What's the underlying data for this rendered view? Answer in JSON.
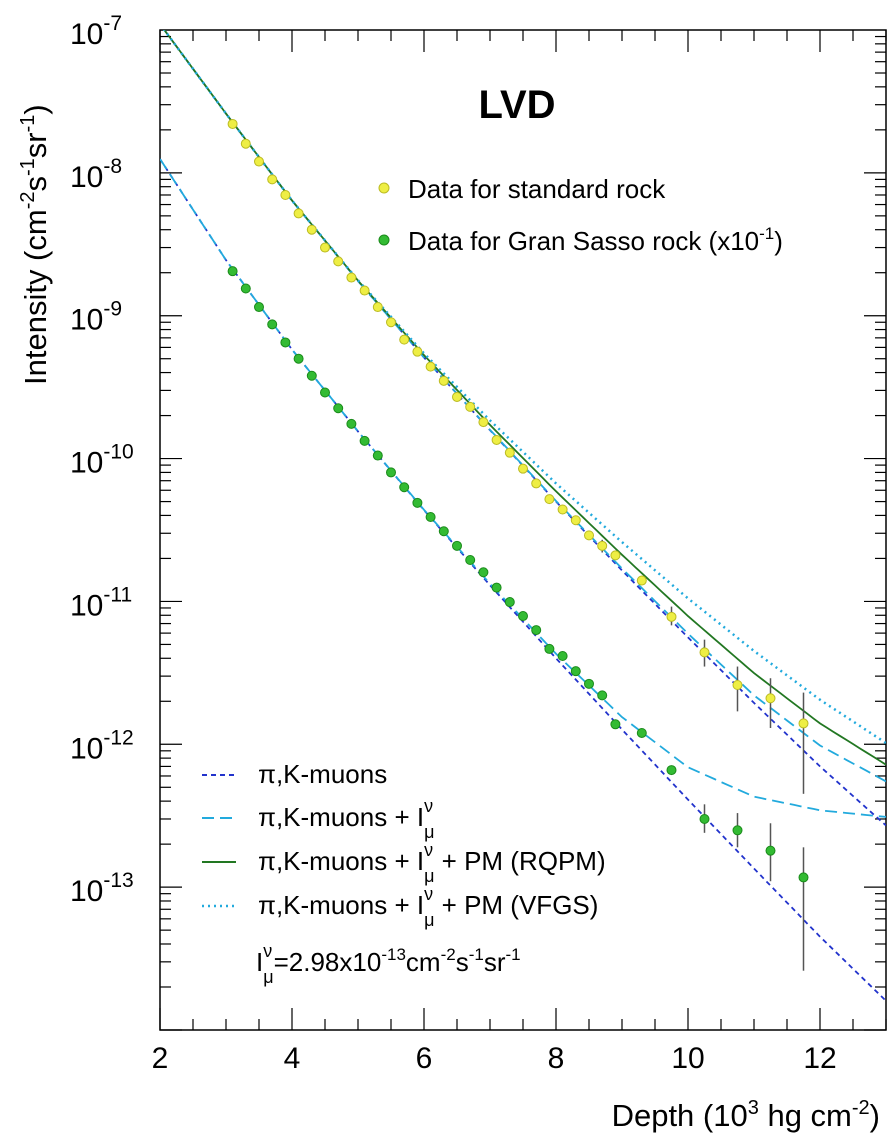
{
  "chart_data": {
    "type": "scatter",
    "title": "LVD",
    "xlabel": {
      "main": "Depth  (10",
      "exp1": "3",
      "mid": " hg cm",
      "exp2": "-2",
      "end": ")"
    },
    "ylabel": {
      "main": "Intensity  (cm",
      "e1": "-2",
      "s": "s",
      "e2": "-1",
      "sr": "sr",
      "e3": "-1",
      "end": ")"
    },
    "xlim": [
      2,
      13
    ],
    "ylim_log10": [
      -14,
      -7
    ],
    "y_scale": "log",
    "x_ticks": [
      "2",
      "4",
      "6",
      "8",
      "10",
      "12"
    ],
    "y_ticks": [
      {
        "base": "10",
        "exp": "-7"
      },
      {
        "base": "10",
        "exp": "-8"
      },
      {
        "base": "10",
        "exp": "-9"
      },
      {
        "base": "10",
        "exp": "-10"
      },
      {
        "base": "10",
        "exp": "-11"
      },
      {
        "base": "10",
        "exp": "-12"
      },
      {
        "base": "10",
        "exp": "-13"
      }
    ],
    "data_series": [
      {
        "name": "Data for standard rock",
        "color": "#eeee44",
        "points": [
          [
            3.1,
            2.2e-08
          ],
          [
            3.3,
            1.6e-08
          ],
          [
            3.5,
            1.2e-08
          ],
          [
            3.7,
            9e-09
          ],
          [
            3.9,
            7e-09
          ],
          [
            4.1,
            5.2e-09
          ],
          [
            4.3,
            4e-09
          ],
          [
            4.5,
            3e-09
          ],
          [
            4.7,
            2.4e-09
          ],
          [
            4.9,
            1.85e-09
          ],
          [
            5.1,
            1.5e-09
          ],
          [
            5.3,
            1.15e-09
          ],
          [
            5.5,
            9e-10
          ],
          [
            5.7,
            6.8e-10
          ],
          [
            5.9,
            5.6e-10
          ],
          [
            6.1,
            4.4e-10
          ],
          [
            6.3,
            3.5e-10
          ],
          [
            6.5,
            2.7e-10
          ],
          [
            6.7,
            2.3e-10
          ],
          [
            6.9,
            1.8e-10
          ],
          [
            7.1,
            1.35e-10
          ],
          [
            7.3,
            1.1e-10
          ],
          [
            7.5,
            8.5e-11
          ],
          [
            7.7,
            6.7e-11
          ],
          [
            7.9,
            5.2e-11
          ],
          [
            8.1,
            4.4e-11
          ],
          [
            8.3,
            3.7e-11
          ],
          [
            8.5,
            2.9e-11
          ],
          [
            8.7,
            2.45e-11
          ],
          [
            8.9,
            2.1e-11
          ],
          [
            9.3,
            1.4e-11
          ],
          [
            9.75,
            7.8e-12
          ],
          [
            10.25,
            4.4e-12
          ],
          [
            10.75,
            2.6e-12
          ],
          [
            11.25,
            2.1e-12
          ],
          [
            11.75,
            1.4e-12
          ]
        ],
        "errors": [
          [
            9.75,
            6.8e-12,
            9.2e-12
          ],
          [
            10.25,
            3.5e-12,
            5.4e-12
          ],
          [
            10.75,
            1.7e-12,
            3.5e-12
          ],
          [
            11.25,
            1.3e-12,
            2.9e-12
          ],
          [
            11.75,
            4.5e-13,
            2.3e-12
          ],
          [
            8.7,
            2.2e-11,
            2.7e-11
          ]
        ]
      },
      {
        "name": "Data for Gran Sasso rock (x10",
        "name_exp": "-1",
        "name_end": ")",
        "color": "#33bb33",
        "points": [
          [
            3.1,
            2.05e-09
          ],
          [
            3.3,
            1.55e-09
          ],
          [
            3.5,
            1.15e-09
          ],
          [
            3.7,
            8.7e-10
          ],
          [
            3.9,
            6.5e-10
          ],
          [
            4.1,
            5e-10
          ],
          [
            4.3,
            3.8e-10
          ],
          [
            4.5,
            2.9e-10
          ],
          [
            4.7,
            2.25e-10
          ],
          [
            4.9,
            1.75e-10
          ],
          [
            5.1,
            1.33e-10
          ],
          [
            5.3,
            1.05e-10
          ],
          [
            5.5,
            8e-11
          ],
          [
            5.7,
            6.3e-11
          ],
          [
            5.9,
            4.9e-11
          ],
          [
            6.1,
            3.9e-11
          ],
          [
            6.3,
            3.1e-11
          ],
          [
            6.5,
            2.45e-11
          ],
          [
            6.7,
            1.95e-11
          ],
          [
            6.9,
            1.6e-11
          ],
          [
            7.1,
            1.25e-11
          ],
          [
            7.3,
            9.9e-12
          ],
          [
            7.5,
            7.9e-12
          ],
          [
            7.7,
            6.3e-12
          ],
          [
            7.9,
            4.65e-12
          ],
          [
            8.1,
            4.15e-12
          ],
          [
            8.3,
            3.25e-12
          ],
          [
            8.5,
            2.65e-12
          ],
          [
            8.7,
            2.2e-12
          ],
          [
            8.9,
            1.38e-12
          ],
          [
            9.3,
            1.2e-12
          ],
          [
            9.75,
            6.6e-13
          ],
          [
            10.25,
            3e-13
          ],
          [
            10.75,
            2.5e-13
          ],
          [
            11.25,
            1.8e-13
          ],
          [
            11.75,
            1.17e-13
          ]
        ],
        "errors": [
          [
            10.25,
            2.4e-13,
            3.8e-13
          ],
          [
            10.75,
            1.9e-13,
            3.3e-13
          ],
          [
            11.25,
            1.1e-13,
            2.8e-13
          ],
          [
            11.75,
            2.6e-14,
            1.9e-13
          ]
        ]
      }
    ],
    "models": [
      {
        "name": "pi,K-muons",
        "style": "dashed-short",
        "color": "#2233cc",
        "curve_standard": [
          [
            2.0,
            1.1e-07
          ],
          [
            3.0,
            2.6e-08
          ],
          [
            4.0,
            6.4e-09
          ],
          [
            5.0,
            1.75e-09
          ],
          [
            6.0,
            5.1e-10
          ],
          [
            7.0,
            1.58e-10
          ],
          [
            8.0,
            5e-11
          ],
          [
            9.0,
            1.65e-11
          ],
          [
            10.0,
            5.6e-12
          ],
          [
            11.0,
            1.95e-12
          ],
          [
            12.0,
            7e-13
          ],
          [
            13.0,
            2.7e-13
          ]
        ],
        "curve_gransasso": [
          [
            2.0,
            1.25e-08
          ],
          [
            3.0,
            2.45e-09
          ],
          [
            4.0,
            5.8e-10
          ],
          [
            5.0,
            1.55e-10
          ],
          [
            6.0,
            4.35e-11
          ],
          [
            7.0,
            1.3e-11
          ],
          [
            8.0,
            4e-12
          ],
          [
            9.0,
            1.27e-12
          ],
          [
            10.0,
            4.1e-13
          ],
          [
            11.0,
            1.35e-13
          ],
          [
            12.0,
            4.5e-14
          ],
          [
            13.0,
            1.6e-14
          ]
        ]
      },
      {
        "name": "pi,K-muons + I",
        "name_sup": "v",
        "name_sub": "mu",
        "style": "dashed-long",
        "color": "#22aadd",
        "curve_standard": [
          [
            2.0,
            1.1e-07
          ],
          [
            3.0,
            2.6e-08
          ],
          [
            4.0,
            6.4e-09
          ],
          [
            5.0,
            1.75e-09
          ],
          [
            6.0,
            5.1e-10
          ],
          [
            7.0,
            1.59e-10
          ],
          [
            8.0,
            5.05e-11
          ],
          [
            9.0,
            1.7e-11
          ],
          [
            10.0,
            5.95e-12
          ],
          [
            11.0,
            2.2e-12
          ],
          [
            12.0,
            9.8e-13
          ],
          [
            13.0,
            5.5e-13
          ]
        ],
        "curve_gransasso": [
          [
            2.0,
            1.25e-08
          ],
          [
            3.0,
            2.45e-09
          ],
          [
            4.0,
            5.8e-10
          ],
          [
            5.0,
            1.55e-10
          ],
          [
            6.0,
            4.38e-11
          ],
          [
            7.0,
            1.33e-11
          ],
          [
            8.0,
            4.3e-12
          ],
          [
            9.0,
            1.55e-12
          ],
          [
            10.0,
            6.9e-13
          ],
          [
            11.0,
            4.3e-13
          ],
          [
            12.0,
            3.45e-13
          ],
          [
            13.0,
            3.1e-13
          ]
        ]
      },
      {
        "name": "pi,K-muons + I",
        "name_sup": "v",
        "name_sub": "mu",
        "name_end": "+ PM (RQPM)",
        "style": "solid",
        "color": "#227722",
        "curve_standard": [
          [
            2.0,
            1.1e-07
          ],
          [
            3.0,
            2.6e-08
          ],
          [
            4.0,
            6.4e-09
          ],
          [
            5.0,
            1.76e-09
          ],
          [
            6.0,
            5.3e-10
          ],
          [
            7.0,
            1.72e-10
          ],
          [
            8.0,
            5.9e-11
          ],
          [
            9.0,
            2.12e-11
          ],
          [
            10.0,
            7.9e-12
          ],
          [
            11.0,
            3.15e-12
          ],
          [
            12.0,
            1.4e-12
          ],
          [
            13.0,
            7.2e-13
          ]
        ]
      },
      {
        "name": "pi,K-muons + I",
        "name_sup": "v",
        "name_sub": "mu",
        "name_end": "+ PM (VFGS)",
        "style": "dotted",
        "color": "#22aadd",
        "curve_standard": [
          [
            2.0,
            1.1e-07
          ],
          [
            3.0,
            2.6e-08
          ],
          [
            4.0,
            6.4e-09
          ],
          [
            5.0,
            1.77e-09
          ],
          [
            6.0,
            5.45e-10
          ],
          [
            7.0,
            1.85e-10
          ],
          [
            8.0,
            6.7e-11
          ],
          [
            9.0,
            2.6e-11
          ],
          [
            10.0,
            1.05e-11
          ],
          [
            11.0,
            4.5e-12
          ],
          [
            12.0,
            2.05e-12
          ],
          [
            13.0,
            1.02e-12
          ]
        ]
      }
    ],
    "annotation": {
      "prefix": "I",
      "sup": "v",
      "sub": "mu",
      "value": "=2.98x10",
      "value_exp": "-13",
      "unit_cm": "cm",
      "unit_e1": "-2",
      "unit_s": "s",
      "unit_e2": "-1",
      "unit_sr": "sr",
      "unit_e3": "-1"
    },
    "legend_position": "top-right (data) / bottom-left (models)"
  }
}
